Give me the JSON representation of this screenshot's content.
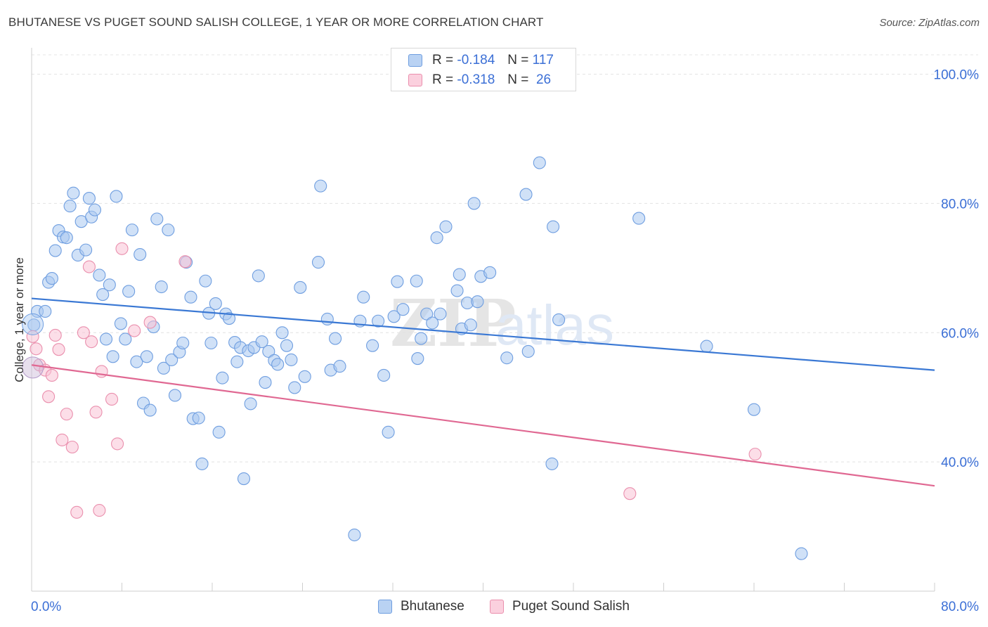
{
  "header": {
    "title": "BHUTANESE VS PUGET SOUND SALISH COLLEGE, 1 YEAR OR MORE CORRELATION CHART",
    "source": "Source: ZipAtlas.com"
  },
  "legend": {
    "rows": [
      {
        "r_label": "R =",
        "r_value": "-0.184",
        "n_label": "N =",
        "n_value": "117"
      },
      {
        "r_label": "R =",
        "r_value": "-0.318",
        "n_label": "N =",
        "n_value": "26"
      }
    ]
  },
  "watermark": {
    "zip": "ZIP",
    "atlas": "atlas"
  },
  "chart_data": {
    "type": "scatter",
    "title": "BHUTANESE VS PUGET SOUND SALISH COLLEGE, 1 YEAR OR MORE CORRELATION CHART",
    "xlabel": "",
    "ylabel": "College, 1 year or more",
    "xlim": [
      0,
      80
    ],
    "ylim": [
      20,
      103
    ],
    "x_tick_labels": [
      "0.0%",
      "80.0%"
    ],
    "y_ticks": [
      40,
      60,
      80,
      100
    ],
    "y_tick_labels": [
      "40.0%",
      "60.0%",
      "80.0%",
      "100.0%"
    ],
    "grid": true,
    "legend_position": "top-center",
    "series": [
      {
        "name": "Bhutanese",
        "color": "#a9c8f0",
        "edge": "#6f9ee0",
        "trend_color": "#3a78d4",
        "trend": [
          [
            0,
            65.3
          ],
          [
            80,
            54.2
          ]
        ],
        "points": [
          [
            0.2,
            61.2
          ],
          [
            0.5,
            63.3
          ],
          [
            1.2,
            63.3
          ],
          [
            1.5,
            67.8
          ],
          [
            1.8,
            68.4
          ],
          [
            2.1,
            72.7
          ],
          [
            2.4,
            75.8
          ],
          [
            2.8,
            74.8
          ],
          [
            3.1,
            74.7
          ],
          [
            3.4,
            79.6
          ],
          [
            3.7,
            81.6
          ],
          [
            4.1,
            72.0
          ],
          [
            4.4,
            77.2
          ],
          [
            4.8,
            72.8
          ],
          [
            5.1,
            80.8
          ],
          [
            5.3,
            77.9
          ],
          [
            5.6,
            79.0
          ],
          [
            6.0,
            68.9
          ],
          [
            6.3,
            65.9
          ],
          [
            6.6,
            59.0
          ],
          [
            6.9,
            67.4
          ],
          [
            7.2,
            56.3
          ],
          [
            7.5,
            81.1
          ],
          [
            7.9,
            61.4
          ],
          [
            8.3,
            59.0
          ],
          [
            8.6,
            66.4
          ],
          [
            8.9,
            75.9
          ],
          [
            9.3,
            55.5
          ],
          [
            9.6,
            72.1
          ],
          [
            9.9,
            49.1
          ],
          [
            10.2,
            56.3
          ],
          [
            10.5,
            48.0
          ],
          [
            10.8,
            60.9
          ],
          [
            11.1,
            77.6
          ],
          [
            11.5,
            67.1
          ],
          [
            11.7,
            54.5
          ],
          [
            12.1,
            75.9
          ],
          [
            12.4,
            55.8
          ],
          [
            12.7,
            50.3
          ],
          [
            13.1,
            57.0
          ],
          [
            13.4,
            58.4
          ],
          [
            13.7,
            70.9
          ],
          [
            14.1,
            65.5
          ],
          [
            14.3,
            46.7
          ],
          [
            14.8,
            46.8
          ],
          [
            15.1,
            39.7
          ],
          [
            15.4,
            68.0
          ],
          [
            15.7,
            63.0
          ],
          [
            15.9,
            58.4
          ],
          [
            16.3,
            64.5
          ],
          [
            16.6,
            44.6
          ],
          [
            16.9,
            53.0
          ],
          [
            17.2,
            62.9
          ],
          [
            17.5,
            62.2
          ],
          [
            18.0,
            58.5
          ],
          [
            18.2,
            55.5
          ],
          [
            18.5,
            57.7
          ],
          [
            18.8,
            37.4
          ],
          [
            19.2,
            57.2
          ],
          [
            19.4,
            49.0
          ],
          [
            19.7,
            57.7
          ],
          [
            20.1,
            68.8
          ],
          [
            20.4,
            58.6
          ],
          [
            20.7,
            52.3
          ],
          [
            21.0,
            57.1
          ],
          [
            21.5,
            55.7
          ],
          [
            21.8,
            55.1
          ],
          [
            22.2,
            60.0
          ],
          [
            22.6,
            58.0
          ],
          [
            23.0,
            55.8
          ],
          [
            23.3,
            51.5
          ],
          [
            23.8,
            67.0
          ],
          [
            24.2,
            53.2
          ],
          [
            25.4,
            70.9
          ],
          [
            25.6,
            82.7
          ],
          [
            26.2,
            62.1
          ],
          [
            26.5,
            54.2
          ],
          [
            26.9,
            59.1
          ],
          [
            27.3,
            54.8
          ],
          [
            28.6,
            28.7
          ],
          [
            29.1,
            61.8
          ],
          [
            29.4,
            65.5
          ],
          [
            30.2,
            58.0
          ],
          [
            30.7,
            61.8
          ],
          [
            31.2,
            53.4
          ],
          [
            31.6,
            44.6
          ],
          [
            32.1,
            62.5
          ],
          [
            32.4,
            67.9
          ],
          [
            32.9,
            63.6
          ],
          [
            34.1,
            68.0
          ],
          [
            34.2,
            56.0
          ],
          [
            34.5,
            59.1
          ],
          [
            35.0,
            62.9
          ],
          [
            35.5,
            61.5
          ],
          [
            35.9,
            74.7
          ],
          [
            36.2,
            62.9
          ],
          [
            36.7,
            76.4
          ],
          [
            37.7,
            66.5
          ],
          [
            37.9,
            69.0
          ],
          [
            38.1,
            60.6
          ],
          [
            38.6,
            64.6
          ],
          [
            38.9,
            61.2
          ],
          [
            39.2,
            80.0
          ],
          [
            39.5,
            64.8
          ],
          [
            39.8,
            68.7
          ],
          [
            40.6,
            69.3
          ],
          [
            42.1,
            56.1
          ],
          [
            43.8,
            81.4
          ],
          [
            44.0,
            57.1
          ],
          [
            45.0,
            86.3
          ],
          [
            46.1,
            39.7
          ],
          [
            46.2,
            76.4
          ],
          [
            46.7,
            62.0
          ],
          [
            53.8,
            77.7
          ],
          [
            59.8,
            57.9
          ],
          [
            64.0,
            48.1
          ],
          [
            68.2,
            25.8
          ]
        ]
      },
      {
        "name": "Puget Sound Salish",
        "color": "#f9c3d5",
        "edge": "#ea8fad",
        "trend_color": "#e06892",
        "trend": [
          [
            0,
            55.0
          ],
          [
            80,
            36.3
          ]
        ],
        "points": [
          [
            0.1,
            59.4
          ],
          [
            0.4,
            57.5
          ],
          [
            0.7,
            55.0
          ],
          [
            1.2,
            54.2
          ],
          [
            1.5,
            50.1
          ],
          [
            1.8,
            53.4
          ],
          [
            2.1,
            59.6
          ],
          [
            2.4,
            57.4
          ],
          [
            2.7,
            43.4
          ],
          [
            3.1,
            47.4
          ],
          [
            3.6,
            42.3
          ],
          [
            4.0,
            32.2
          ],
          [
            4.6,
            60.0
          ],
          [
            5.1,
            70.2
          ],
          [
            5.3,
            58.6
          ],
          [
            5.7,
            47.7
          ],
          [
            6.0,
            32.5
          ],
          [
            6.2,
            54.0
          ],
          [
            7.1,
            49.7
          ],
          [
            7.6,
            42.8
          ],
          [
            8.0,
            73.0
          ],
          [
            9.1,
            60.3
          ],
          [
            10.5,
            61.6
          ],
          [
            13.6,
            71.0
          ],
          [
            53.0,
            35.1
          ],
          [
            64.1,
            41.2
          ]
        ]
      }
    ]
  }
}
